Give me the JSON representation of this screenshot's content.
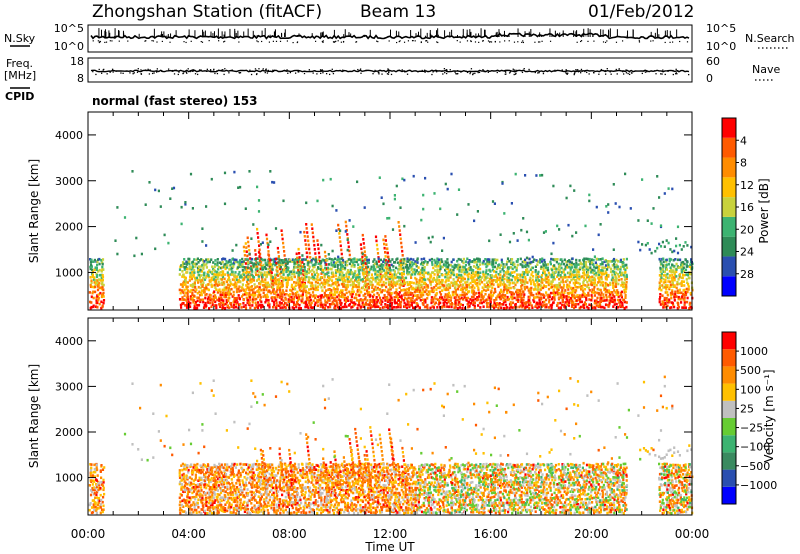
{
  "header": {
    "station": "Zhongshan Station (fitACF)",
    "beam": "Beam 13",
    "date": "01/Feb/2012",
    "mode": "normal (fast stereo) 153"
  },
  "side_labels": {
    "nsky": "N.Sky",
    "freq": "Freq.",
    "freq_unit": "[MHz]",
    "cpid": "CPID",
    "nsearch": "N.Search",
    "nave": "Nave"
  },
  "chart_data": [
    {
      "type": "line",
      "name": "nsky-nsearch",
      "yticks_left": [
        "10^5",
        "10^0"
      ],
      "yticks_right": [
        "10^5",
        "10^0"
      ]
    },
    {
      "type": "line",
      "name": "freq-nave",
      "yticks_left": [
        "18",
        "8"
      ],
      "yticks_right": [
        "60",
        "0"
      ]
    },
    {
      "type": "heatmap",
      "name": "power",
      "ylabel": "Slant Range [km]",
      "yticks": [
        1000,
        2000,
        3000,
        4000
      ],
      "ylim": [
        180,
        4500
      ],
      "xlim": [
        0,
        24
      ],
      "colorbar": {
        "label": "Power [dB]",
        "ticks": [
          "4",
          "8",
          "12",
          "16",
          "20",
          "24",
          "28"
        ],
        "colors": [
          "#0000ff",
          "#2a4fb0",
          "#2e8b57",
          "#3cb371",
          "#c8d23c",
          "#ffc000",
          "#ff8c00",
          "#ff5a00",
          "#ff0000"
        ]
      }
    },
    {
      "type": "heatmap",
      "name": "velocity",
      "ylabel": "Slant Range [km]",
      "yticks": [
        1000,
        2000,
        3000,
        4000
      ],
      "ylim": [
        180,
        4500
      ],
      "xlim": [
        0,
        24
      ],
      "colorbar": {
        "label": "Velocity [m s⁻¹]",
        "ticks": [
          "1000",
          "500",
          "100",
          "25",
          "−25",
          "−100",
          "−500",
          "−1000"
        ],
        "colors": [
          "#0000ff",
          "#2a4fb0",
          "#3a8a60",
          "#3cb371",
          "#66cc33",
          "#c0c0c0",
          "#ffc000",
          "#ff8c00",
          "#ff5a00",
          "#ff0000"
        ]
      }
    }
  ],
  "xaxis": {
    "ticks": [
      "00:00",
      "04:00",
      "08:00",
      "12:00",
      "16:00",
      "20:00",
      "00:00"
    ],
    "label": "Time UT"
  }
}
